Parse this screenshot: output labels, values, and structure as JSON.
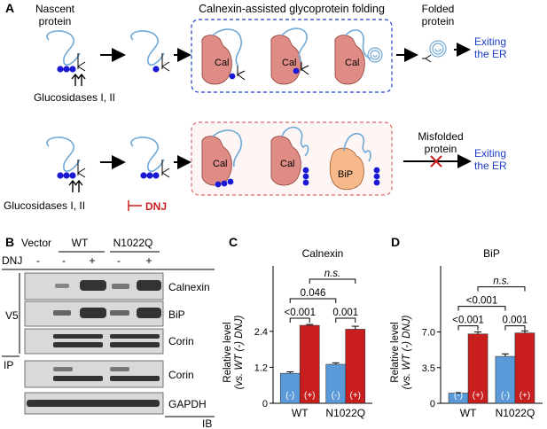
{
  "panel_a": {
    "label": "A",
    "nascent": "Nascent\nprotein",
    "calnexin_box_title": "Calnexin-assisted glycoprotein folding",
    "cal": "Cal",
    "folded": "Folded\nprotein",
    "exiting_top": "Exiting\nthe ER",
    "glucosidases_top": "Glucosidases I, II",
    "misfolded": "Misfolded\nprotein",
    "exiting_bottom": "Exiting\nthe ER",
    "glucosidases_bottom": "Glucosidases I, II",
    "inhibitor": "DNJ",
    "bip": "BiP",
    "colors": {
      "blue_text": "#1f3fc9",
      "red": "#cc1f1f",
      "cal_fill": "#e08c86",
      "bip_fill": "#f7b98a",
      "dot": "#1a1ad6",
      "protein": "#6fa8d6"
    }
  },
  "panel_b": {
    "label": "B",
    "vector": "Vector",
    "wt": "WT",
    "mutant": "N1022Q",
    "dnj": "DNJ",
    "dnj_signs": [
      "-",
      "-",
      "+",
      "-",
      "+"
    ],
    "v5": "V5",
    "ip": "IP",
    "ib": "IB",
    "rows": [
      "Calnexin",
      "BiP",
      "Corin",
      "Corin",
      "GAPDH"
    ]
  },
  "chart_data": [
    {
      "panel": "C",
      "type": "bar",
      "title": "Calnexin",
      "ylabel": "Relative level\n(vs. WT (-) DNJ)",
      "categories": [
        "WT",
        "N1022Q"
      ],
      "series": [
        {
          "name": "(-)",
          "values": [
            1.0,
            1.3
          ],
          "errors": [
            0.05,
            0.05
          ]
        },
        {
          "name": "(+)",
          "values": [
            2.6,
            2.47
          ],
          "errors": [
            0.03,
            0.1
          ]
        }
      ],
      "ylim": [
        0,
        3.4
      ],
      "yticks": [
        "0",
        "1.2",
        "2.4"
      ],
      "bar_labels": [
        "(-)",
        "(+)",
        "(-)",
        "(+)"
      ],
      "pvalues": [
        "<0.001",
        "0.001",
        "0.046",
        "n.s."
      ],
      "colors": {
        "minus": "#5a9ad8",
        "plus": "#c81e1e"
      }
    },
    {
      "panel": "D",
      "type": "bar",
      "title": "BiP",
      "ylabel": "Relative level\n(vs. WT (-) DNJ)",
      "categories": [
        "WT",
        "N1022Q"
      ],
      "series": [
        {
          "name": "(-)",
          "values": [
            1.0,
            4.6
          ],
          "errors": [
            0.05,
            0.25
          ]
        },
        {
          "name": "(+)",
          "values": [
            6.8,
            6.9
          ],
          "errors": [
            0.2,
            0.2
          ]
        }
      ],
      "ylim": [
        0,
        10
      ],
      "yticks": [
        "0",
        "3.5",
        "7.0"
      ],
      "bar_labels": [
        "(-)",
        "(+)",
        "(-)",
        "(+)"
      ],
      "pvalues": [
        "<0.001",
        "0.001",
        "<0.001",
        "n.s."
      ],
      "colors": {
        "minus": "#5a9ad8",
        "plus": "#c81e1e"
      }
    }
  ]
}
